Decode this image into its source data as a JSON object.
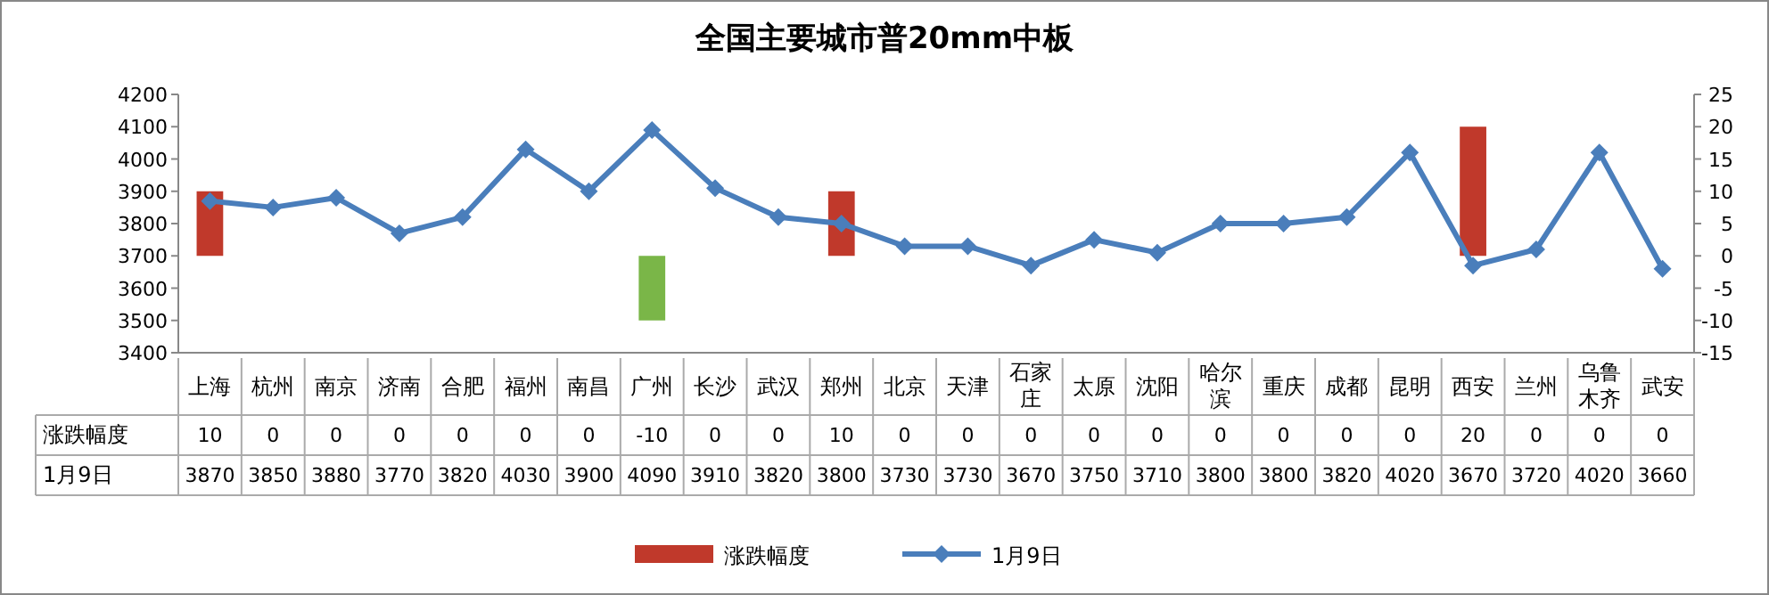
{
  "chart_data": {
    "type": "bar",
    "title": "全国主要城市普20mm中板",
    "categories": [
      "上海",
      "杭州",
      "南京",
      "济南",
      "合肥",
      "福州",
      "南昌",
      "广州",
      "长沙",
      "武汉",
      "郑州",
      "北京",
      "天津",
      "石家庄",
      "太原",
      "沈阳",
      "哈尔滨",
      "重庆",
      "成都",
      "昆明",
      "西安",
      "兰州",
      "乌鲁木齐",
      "武安"
    ],
    "series": [
      {
        "name": "涨跌幅度",
        "axis": "y2",
        "colors": [
          "#c0392b",
          "#c0392b",
          "#c0392b",
          "#c0392b",
          "#c0392b",
          "#c0392b",
          "#c0392b",
          "#7ab648",
          "#c0392b",
          "#c0392b",
          "#c0392b",
          "#c0392b",
          "#c0392b",
          "#c0392b",
          "#c0392b",
          "#c0392b",
          "#c0392b",
          "#c0392b",
          "#c0392b",
          "#c0392b",
          "#c0392b",
          "#c0392b",
          "#c0392b",
          "#c0392b"
        ],
        "values": [
          10,
          0,
          0,
          0,
          0,
          0,
          0,
          -10,
          0,
          0,
          10,
          0,
          0,
          0,
          0,
          0,
          0,
          0,
          0,
          0,
          20,
          0,
          0,
          0
        ]
      },
      {
        "name": "1月9日",
        "type": "line",
        "color": "#4a7ebb",
        "values": [
          3870,
          3850,
          3880,
          3770,
          3820,
          4030,
          3900,
          4090,
          3910,
          3820,
          3800,
          3730,
          3730,
          3670,
          3750,
          3710,
          3800,
          3800,
          3820,
          4020,
          3670,
          3720,
          4020,
          3660
        ]
      }
    ],
    "ylim": [
      3400,
      4200
    ],
    "yticks": [
      3400,
      3500,
      3600,
      3700,
      3800,
      3900,
      4000,
      4100,
      4200
    ],
    "y2lim": [
      -15,
      25
    ],
    "y2ticks": [
      -15,
      -10,
      -5,
      0,
      5,
      10,
      15,
      20,
      25
    ],
    "marker": "diamond",
    "legend": "bottom",
    "data_labels": true
  }
}
